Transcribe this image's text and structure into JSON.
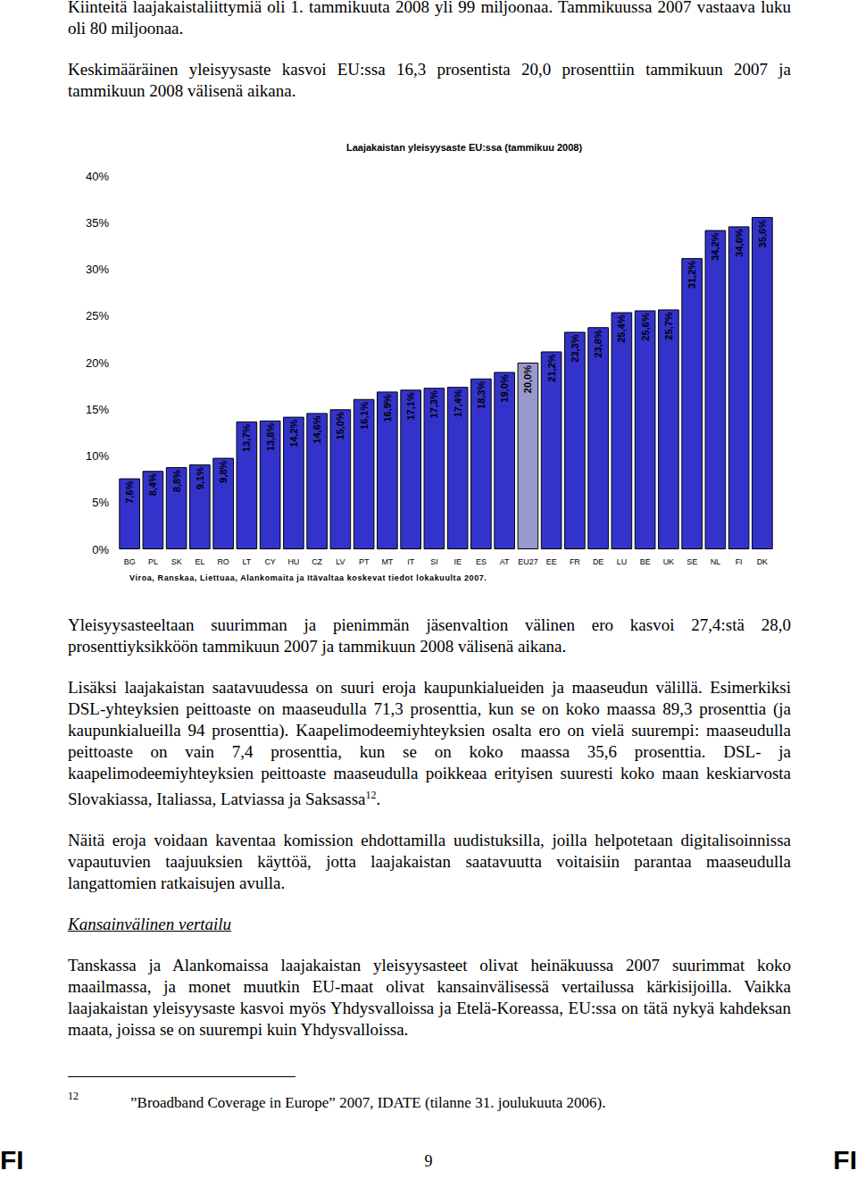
{
  "text_top": [
    "Kiinteitä laajakaistaliittymiä oli 1. tammikuuta 2008 yli 99 miljoonaa. Tammikuussa 2007 vastaava luku oli 80 miljoonaa.",
    "Keskimääräinen yleisyysaste kasvoi EU:ssa 16,3 prosentista 20,0 prosenttiin tammikuun 2007 ja tammikuun 2008 välisenä aikana."
  ],
  "chart_data": {
    "type": "bar",
    "title": "Laajakaistan yleisyysaste EU:ssa (tammikuu 2008)",
    "categories": [
      "BG",
      "PL",
      "SK",
      "EL",
      "RO",
      "LT",
      "CY",
      "HU",
      "CZ",
      "LV",
      "PT",
      "MT",
      "IT",
      "SI",
      "IE",
      "ES",
      "AT",
      "EU27",
      "EE",
      "FR",
      "DE",
      "LU",
      "BE",
      "UK",
      "SE",
      "NL",
      "FI",
      "DK"
    ],
    "values": [
      7.6,
      8.4,
      8.8,
      9.1,
      9.8,
      13.7,
      13.8,
      14.2,
      14.6,
      15.0,
      16.1,
      16.9,
      17.1,
      17.3,
      17.4,
      18.3,
      19.0,
      20.0,
      21.2,
      23.3,
      23.8,
      25.4,
      25.6,
      25.7,
      31.2,
      34.2,
      34.6,
      35.6
    ],
    "value_labels": [
      "7,6%",
      "8,4%",
      "8,8%",
      "9,1%",
      "9,8%",
      "13,7%",
      "13,8%",
      "14,2%",
      "14,6%",
      "15,0%",
      "16,1%",
      "16,9%",
      "17,1%",
      "17,3%",
      "17,4%",
      "18,3%",
      "19,0%",
      "20,0%",
      "21,2%",
      "23,3%",
      "23,8%",
      "25,4%",
      "25,6%",
      "25,7%",
      "31,2%",
      "34,2%",
      "34,6%",
      "35,6%"
    ],
    "colors": [
      "#3333cc",
      "#3333cc",
      "#3333cc",
      "#3333cc",
      "#3333cc",
      "#3333cc",
      "#3333cc",
      "#3333cc",
      "#3333cc",
      "#3333cc",
      "#3333cc",
      "#3333cc",
      "#3333cc",
      "#3333cc",
      "#3333cc",
      "#3333cc",
      "#3333cc",
      "#9999cc",
      "#3333cc",
      "#3333cc",
      "#3333cc",
      "#3333cc",
      "#3333cc",
      "#3333cc",
      "#3333cc",
      "#3333cc",
      "#3333cc",
      "#3333cc"
    ],
    "ylim": [
      0,
      40
    ],
    "yticks": [
      {
        "value": 0,
        "label": "0%"
      },
      {
        "value": 5,
        "label": "5%"
      },
      {
        "value": 10,
        "label": "10%"
      },
      {
        "value": 15,
        "label": "15%"
      },
      {
        "value": 20,
        "label": "20%"
      },
      {
        "value": 25,
        "label": "25%"
      },
      {
        "value": 30,
        "label": "30%"
      },
      {
        "value": 35,
        "label": "35%"
      },
      {
        "value": 40,
        "label": "40%"
      }
    ],
    "data_labels": true,
    "grid": false,
    "annotation": "Viroa, Ranskaa, Liettuaa, Alankomaita ja Itävaltaa koskevat tiedot lokakuulta 2007."
  },
  "text_after_chart": [
    {
      "text": "Yleisyysasteeltaan suurimman ja pienimmän jäsenvaltion välinen ero kasvoi 27,4:stä 28,0 prosenttiyksikköön tammikuun 2007 ja tammikuun 2008 välisenä aikana."
    },
    {
      "text": "Lisäksi laajakaistan saatavuudessa on suuri eroja kaupunkialueiden ja maaseudun välillä. Esimerkiksi DSL-yhteyksien peittoaste on maaseudulla 71,3 prosenttia, kun se on koko maassa 89,3 prosenttia (ja kaupunkialueilla 94 prosenttia). Kaapelimodeemiyhteyksien osalta ero on vielä suurempi: maaseudulla peittoaste on vain 7,4 prosenttia, kun se on koko maassa 35,6 prosenttia. DSL- ja kaapelimodeemiyhteyksien peittoaste maaseudulla poikkeaa erityisen suuresti koko maan keskiarvosta Slovakiassa, Italiassa, Latviassa ja Saksassa",
      "sup": "12",
      "after": "."
    },
    {
      "text": "Näitä eroja voidaan kaventaa komission ehdottamilla uudistuksilla, joilla helpotetaan digitalisoinnissa vapautuvien taajuuksien käyttöä, jotta laajakaistan saatavuutta voitaisiin parantaa maaseudulla langattomien ratkaisujen avulla."
    }
  ],
  "heading": "Kansainvälinen vertailu",
  "text_end": [
    "Tanskassa ja Alankomaissa laajakaistan yleisyysasteet olivat heinäkuussa 2007 suurimmat koko maailmassa, ja monet muutkin EU-maat olivat kansainvälisessä vertailussa kärkisijoilla. Vaikka laajakaistan yleisyysaste kasvoi myös Yhdysvalloissa ja Etelä-Koreassa, EU:ssa on tätä nykyä kahdeksan maata, joissa se on suurempi kuin Yhdysvalloissa."
  ],
  "footnote": {
    "mark": "12",
    "text": "”Broadband Coverage in Europe” 2007, IDATE (tilanne 31. joulukuuta 2006)."
  },
  "footer": {
    "left": "FI",
    "page": "9",
    "right": "FI"
  }
}
